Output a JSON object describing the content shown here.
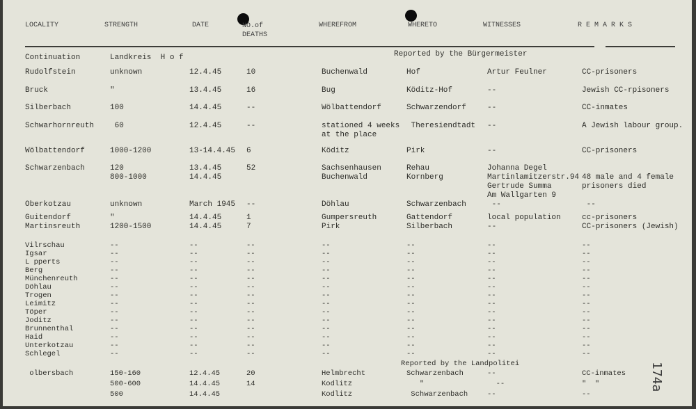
{
  "headers": [
    "LOCALITY",
    "STRENGTH",
    "DATE",
    "NO.of\nDEATHS",
    "WHEREFROM",
    "WHERETO",
    "WITNESSES",
    "R E M A R K S"
  ],
  "notes": {
    "burgermeister": "Reported by the Bürgermeister",
    "landpolizei": "Reported by the Landpolitei"
  },
  "rows": [
    [
      "Continuation",
      "Landkreis  H o f",
      "",
      "",
      "",
      "",
      "",
      ""
    ],
    [
      "Rudolfstein",
      "unknown",
      "12.4.45",
      "10",
      "Buchenwald",
      "Hof",
      "Artur Feulner",
      "CC-prisoners"
    ],
    [
      "Bruck",
      "\"",
      "13.4.45",
      "16",
      "Bug",
      "Köditz-Hof",
      "--",
      "Jewish CC-rpisoners"
    ],
    [
      "Silberbach",
      "100",
      "14.4.45",
      "--",
      "Wölbattendorf",
      "Schwarzendorf",
      "--",
      "CC-inmates"
    ],
    [
      "Schwarhornreuth",
      " 60",
      "12.4.45",
      "--",
      "stationed 4 weeks\nat the place",
      " Theresiendtadt",
      "--",
      "A Jewish labour group."
    ],
    [
      "Wölbattendorf",
      "1000-1200",
      "13-14.4.45",
      "6",
      "Köditz",
      "Pirk",
      "--",
      "CC-prisoners"
    ],
    [
      "Schwarzenbach",
      "120\n800-1000",
      "13.4.45\n14.4.45",
      "52",
      "Sachsenhausen\nBuchenwald",
      "Rehau\nKornberg",
      "Johanna Degel\nMartinlamitzerstr.94\nGertrude Summa\nAm Wallgarten 9",
      "\n48 male and 4 female\nprisoners died"
    ],
    [
      "Oberkotzau",
      "unknown",
      "March 1945",
      "--",
      "Döhlau",
      "Schwarzenbach",
      " --",
      " --"
    ],
    [
      "Guitendorf",
      "\"",
      "14.4.45",
      "1",
      "Gumpersreuth",
      "Gattendorf",
      "local population",
      "cc-prisoners"
    ],
    [
      "Martinsreuth",
      "1200-1500",
      "14.4.45",
      "7",
      "Pirk",
      "Silberbach",
      "--",
      "CC-prisoners (Jewish)"
    ],
    [
      "Vilrschau",
      "--",
      "--",
      "--",
      "--",
      "--",
      "--",
      "--"
    ],
    [
      "Igsar",
      "--",
      "--",
      "--",
      "--",
      "--",
      "--",
      "--"
    ],
    [
      "L pperts",
      "--",
      "--",
      "--",
      "--",
      "--",
      "--",
      "--"
    ],
    [
      "Berg",
      "--",
      "--",
      "--",
      "--",
      "--",
      "--",
      "--"
    ],
    [
      "Münchenreuth",
      "--",
      "--",
      "--",
      "--",
      "--",
      "--",
      "--"
    ],
    [
      "Döhlau",
      "--",
      "--",
      "--",
      "--",
      "--",
      "--",
      "--"
    ],
    [
      "Trogen",
      "--",
      "--",
      "--",
      "--",
      "--",
      "--",
      "--"
    ],
    [
      "Leimitz",
      "--",
      "--",
      "--",
      "--",
      "--",
      "--",
      "--"
    ],
    [
      "Töper",
      "--",
      "--",
      "--",
      "--",
      "--",
      "--",
      "--"
    ],
    [
      "Joditz",
      "--",
      "--",
      "--",
      "--",
      "--",
      "--",
      "--"
    ],
    [
      "Brunnenthal",
      "--",
      "--",
      "--",
      "--",
      "--",
      "--",
      "--"
    ],
    [
      "Haid",
      "--",
      "--",
      "--",
      "--",
      "--",
      "--",
      "--"
    ],
    [
      "Unterkotzau",
      "--",
      "--",
      "--",
      "--",
      "--",
      "--",
      "--"
    ],
    [
      "Schlegel",
      "--",
      "--",
      "--",
      "--",
      "--",
      "--",
      "--"
    ],
    [
      " olbersbach",
      "150-160",
      "12.4.45",
      "20",
      "Helmbrecht",
      "Schwarzenbach",
      "--",
      "CC-inmates"
    ],
    [
      "",
      "500-600",
      "14.4.45",
      "14",
      "Kodlitz",
      "   \"",
      "  --",
      "\"  \""
    ],
    [
      "",
      "500",
      "14.4.45",
      "",
      "Kodlitz",
      " Schwarzenbach",
      "--",
      "--"
    ]
  ],
  "page_number": "174a"
}
